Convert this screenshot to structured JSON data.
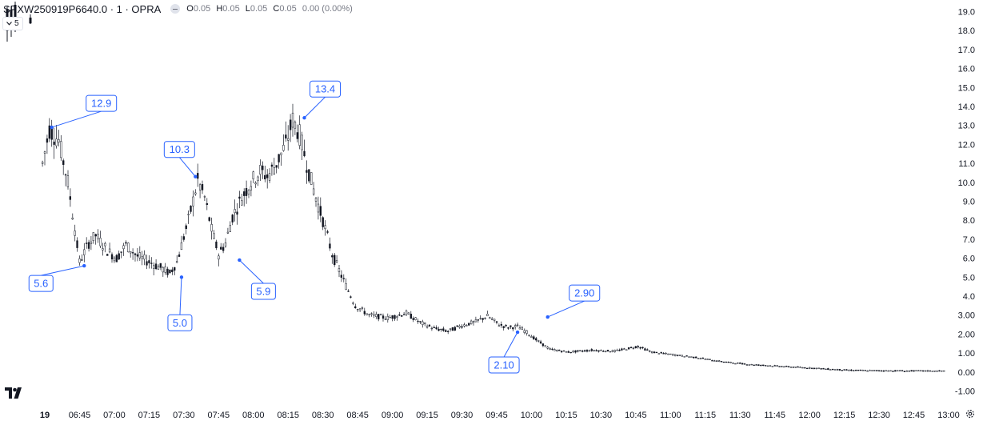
{
  "header": {
    "symbol": "SPXW250919P6640.0 · 1 · OPRA",
    "open_key": "O",
    "open": "0.05",
    "high_key": "H",
    "high": "0.05",
    "low_key": "L",
    "low": "0.05",
    "close_key": "C",
    "close": "0.05",
    "change": "0.00 (0.00%)",
    "collapse_count": "5"
  },
  "icons": {
    "logo": "tradingview-logo-icon",
    "settings": "gear-icon",
    "collapse": "chevron-down-icon",
    "toggle": "minus-icon"
  },
  "colors": {
    "candle": "#131722",
    "annotation": "#2962ff",
    "axis_text": "#131722"
  },
  "chart_data": {
    "type": "candlestick",
    "title": "",
    "xlabel": "",
    "ylabel": "",
    "ylim": [
      -1.0,
      19.0
    ],
    "y_ticks": [
      "19.0",
      "18.0",
      "17.0",
      "16.0",
      "15.0",
      "14.0",
      "13.0",
      "12.0",
      "11.0",
      "10.0",
      "9.0",
      "8.0",
      "7.0",
      "6.0",
      "5.0",
      "4.0",
      "3.00",
      "2.00",
      "1.00",
      "0.00",
      "-1.00"
    ],
    "x_ticks": [
      "19",
      "06:45",
      "07:00",
      "07:15",
      "07:30",
      "07:45",
      "08:00",
      "08:15",
      "08:30",
      "08:45",
      "09:00",
      "09:15",
      "09:30",
      "09:45",
      "10:00",
      "10:15",
      "10:30",
      "10:45",
      "11:00",
      "11:15",
      "11:30",
      "11:45",
      "12:00",
      "12:15",
      "12:30",
      "12:45",
      "13:00"
    ],
    "x_tick_minutes": [
      390,
      405,
      420,
      435,
      450,
      465,
      480,
      495,
      510,
      525,
      540,
      555,
      570,
      585,
      600,
      615,
      630,
      645,
      660,
      675,
      690,
      705,
      720,
      735,
      750,
      765,
      780
    ],
    "price_path": [
      [
        389,
        11.0
      ],
      [
        392,
        12.8
      ],
      [
        396,
        12.2
      ],
      [
        400,
        10.0
      ],
      [
        403,
        7.5
      ],
      [
        405,
        5.8
      ],
      [
        409,
        6.8
      ],
      [
        412,
        7.2
      ],
      [
        417,
        6.4
      ],
      [
        421,
        6.0
      ],
      [
        425,
        6.7
      ],
      [
        430,
        6.1
      ],
      [
        435,
        5.8
      ],
      [
        440,
        5.5
      ],
      [
        444,
        5.2
      ],
      [
        447,
        5.8
      ],
      [
        452,
        8.0
      ],
      [
        456,
        10.1
      ],
      [
        459,
        9.2
      ],
      [
        462,
        7.5
      ],
      [
        465,
        6.2
      ],
      [
        468,
        6.8
      ],
      [
        471,
        8.2
      ],
      [
        475,
        9.2
      ],
      [
        479,
        10.0
      ],
      [
        483,
        10.6
      ],
      [
        486,
        10.3
      ],
      [
        490,
        11.0
      ],
      [
        494,
        12.0
      ],
      [
        497,
        13.3
      ],
      [
        500,
        12.5
      ],
      [
        503,
        11.0
      ],
      [
        506,
        9.6
      ],
      [
        510,
        8.0
      ],
      [
        514,
        6.2
      ],
      [
        519,
        4.8
      ],
      [
        524,
        3.5
      ],
      [
        530,
        3.0
      ],
      [
        538,
        2.85
      ],
      [
        546,
        3.1
      ],
      [
        552,
        2.6
      ],
      [
        558,
        2.3
      ],
      [
        564,
        2.15
      ],
      [
        570,
        2.45
      ],
      [
        576,
        2.65
      ],
      [
        581,
        2.95
      ],
      [
        586,
        2.5
      ],
      [
        590,
        2.35
      ],
      [
        594,
        2.4
      ],
      [
        598,
        2.1
      ],
      [
        602,
        1.7
      ],
      [
        608,
        1.2
      ],
      [
        616,
        1.05
      ],
      [
        626,
        1.15
      ],
      [
        636,
        1.1
      ],
      [
        646,
        1.35
      ],
      [
        652,
        1.05
      ],
      [
        662,
        0.9
      ],
      [
        672,
        0.75
      ],
      [
        682,
        0.55
      ],
      [
        694,
        0.4
      ],
      [
        708,
        0.3
      ],
      [
        722,
        0.2
      ],
      [
        736,
        0.1
      ],
      [
        750,
        0.07
      ],
      [
        778,
        0.05
      ]
    ],
    "annotations": [
      {
        "label": "12.9",
        "time": 393,
        "value": 12.9
      },
      {
        "label": "5.6",
        "time": 407,
        "value": 5.6
      },
      {
        "label": "10.3",
        "time": 455,
        "value": 10.3
      },
      {
        "label": "5.0",
        "time": 449,
        "value": 5.0
      },
      {
        "label": "5.9",
        "time": 474,
        "value": 5.9
      },
      {
        "label": "13.4",
        "time": 502,
        "value": 13.4
      },
      {
        "label": "2.10",
        "time": 594,
        "value": 2.1
      },
      {
        "label": "2.90",
        "time": 607,
        "value": 2.9
      }
    ]
  }
}
